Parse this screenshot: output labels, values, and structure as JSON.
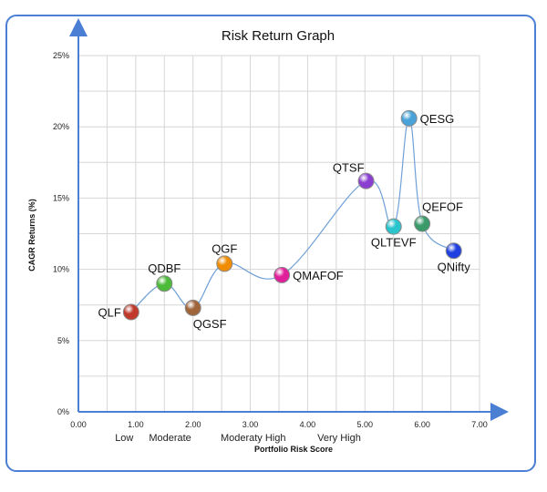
{
  "chart_data": {
    "type": "scatter",
    "title": "Risk Return Graph",
    "xlabel": "Portfolio Risk  Score",
    "ylabel": "CAGR Returns (%)",
    "xlim": [
      0,
      7
    ],
    "ylim": [
      0,
      25
    ],
    "x_ticks": [
      "0.00",
      "1.00",
      "2.00",
      "3.00",
      "4.00",
      "5.00",
      "6.00",
      "7.00"
    ],
    "y_ticks": [
      "0%",
      "5%",
      "10%",
      "15%",
      "20%",
      "25%"
    ],
    "risk_categories": [
      {
        "label": "Low",
        "x": 0.8
      },
      {
        "label": "Moderate",
        "x": 1.6
      },
      {
        "label": "Moderaty High",
        "x": 3.05
      },
      {
        "label": "Very High",
        "x": 4.55
      }
    ],
    "points": [
      {
        "name": "QLF",
        "x": 0.92,
        "y": 7.0,
        "color": "#c0392b",
        "label_pos": "left"
      },
      {
        "name": "QDBF",
        "x": 1.5,
        "y": 9.0,
        "color": "#4cbb3a",
        "label_pos": "top"
      },
      {
        "name": "QGSF",
        "x": 2.0,
        "y": 7.3,
        "color": "#a0643a",
        "label_pos": "bottom-right"
      },
      {
        "name": "QGF",
        "x": 2.55,
        "y": 10.4,
        "color": "#f08c00",
        "label_pos": "top"
      },
      {
        "name": "QMAFOF",
        "x": 3.55,
        "y": 9.6,
        "color": "#e0209b",
        "label_pos": "right"
      },
      {
        "name": "QTSF",
        "x": 5.02,
        "y": 16.2,
        "color": "#8a3fd1",
        "label_pos": "top-left"
      },
      {
        "name": "QLTEVF",
        "x": 5.5,
        "y": 13.0,
        "color": "#29c4cc",
        "label_pos": "bottom"
      },
      {
        "name": "QESG",
        "x": 5.77,
        "y": 20.6,
        "color": "#4aa3d8",
        "label_pos": "right"
      },
      {
        "name": "QEFOF",
        "x": 6.0,
        "y": 13.2,
        "color": "#3a9a6a",
        "label_pos": "top-right"
      },
      {
        "name": "QNifty",
        "x": 6.55,
        "y": 11.3,
        "color": "#1f3fe0",
        "label_pos": "bottom"
      }
    ]
  }
}
